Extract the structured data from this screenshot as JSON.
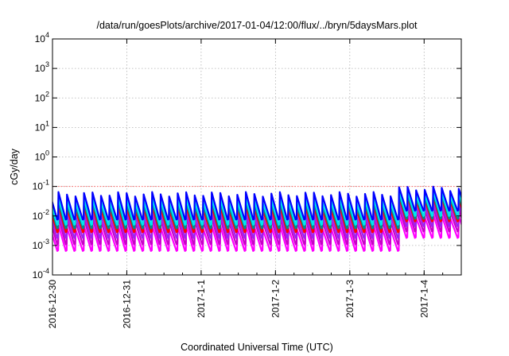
{
  "chart_data": {
    "type": "line",
    "title": "/data/run/goesPlots/archive/2017-01-04/12:00/flux/../bryn/5daysMars.plot",
    "xlabel": "Coordinated Universal Time (UTC)",
    "ylabel": "cGy/day",
    "xlim": [
      "2016-12-30 00:00",
      "2017-01-04 12:00"
    ],
    "ylim": [
      0.0001,
      10000
    ],
    "yscale": "log",
    "grid": true,
    "x_ticks": [
      "2016-12-30",
      "2016-12-31",
      "2017-1-1",
      "2017-1-2",
      "2017-1-3",
      "2017-1-4"
    ],
    "y_ticks": [
      {
        "base": "10",
        "exp": "4"
      },
      {
        "base": "10",
        "exp": "3"
      },
      {
        "base": "10",
        "exp": "2"
      },
      {
        "base": "10",
        "exp": "1"
      },
      {
        "base": "10",
        "exp": "0"
      },
      {
        "base": "10",
        "exp": "-1"
      },
      {
        "base": "10",
        "exp": "-2"
      },
      {
        "base": "10",
        "exp": "-3"
      },
      {
        "base": "10",
        "exp": "-4"
      }
    ],
    "reference_line": {
      "y": 0.1,
      "color": "#ff6666"
    },
    "sawtooth": {
      "period_hours": 2.75,
      "start": "2016-12-30 00:00",
      "end": "2017-01-04 12:00"
    },
    "series": [
      {
        "color": "#ff00ff",
        "peak": 0.005,
        "trough": 0.00065,
        "late_peak": 0.012,
        "late_trough": 0.0018
      },
      {
        "color": "#c800c8",
        "peak": 0.009,
        "trough": 0.0011,
        "late_peak": 0.02,
        "late_trough": 0.003
      },
      {
        "color": "#a020f0",
        "peak": 0.014,
        "trough": 0.0018,
        "late_peak": 0.03,
        "late_trough": 0.0045
      },
      {
        "color": "#ff0000",
        "peak": 0.022,
        "trough": 0.0028,
        "late_peak": 0.045,
        "late_trough": 0.0065
      },
      {
        "color": "#008b8b",
        "peak": 0.03,
        "trough": 0.0038,
        "late_peak": 0.055,
        "late_trough": 0.008
      },
      {
        "color": "#00e5ee",
        "peak": 0.04,
        "trough": 0.005,
        "late_peak": 0.07,
        "late_trough": 0.01
      },
      {
        "color": "#0000ff",
        "peak": 0.065,
        "trough": 0.0075,
        "late_peak": 0.1,
        "late_trough": 0.015
      }
    ]
  }
}
